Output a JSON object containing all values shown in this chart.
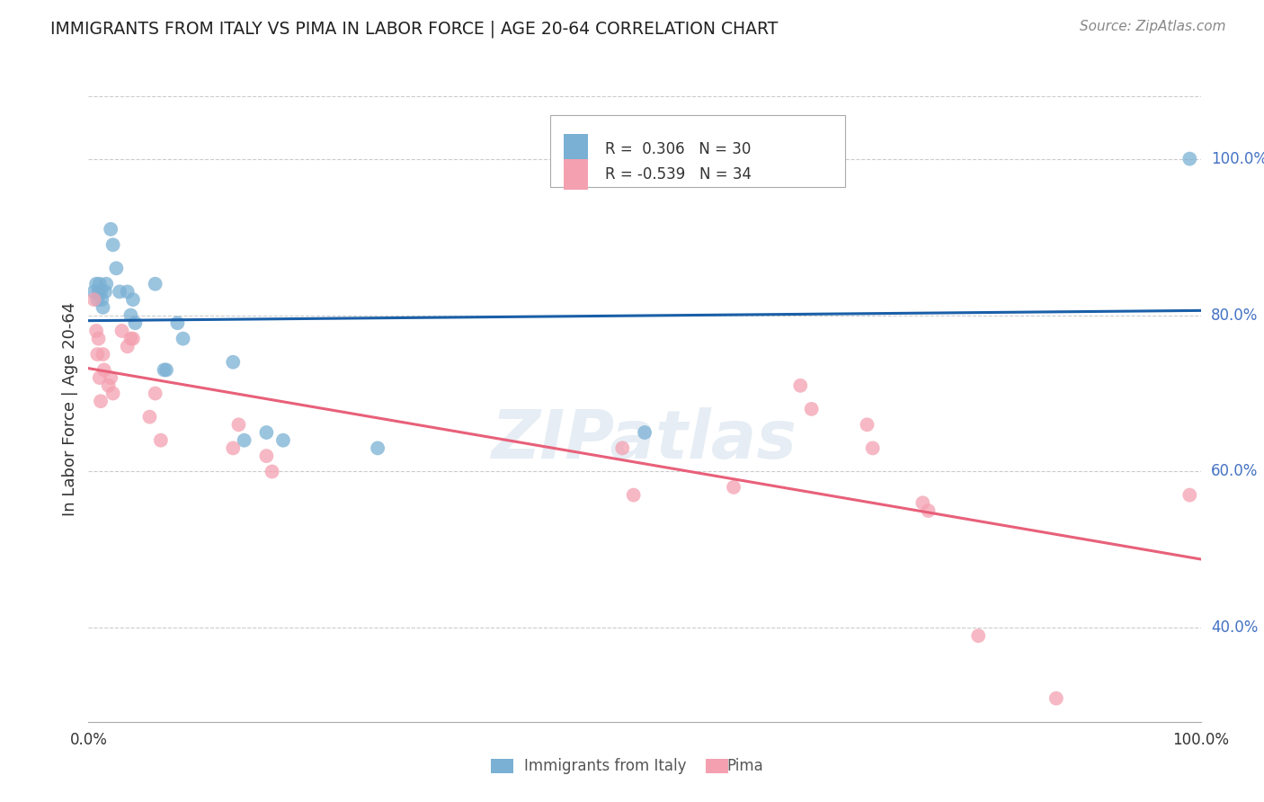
{
  "title": "IMMIGRANTS FROM ITALY VS PIMA IN LABOR FORCE | AGE 20-64 CORRELATION CHART",
  "source": "Source: ZipAtlas.com",
  "ylabel": "In Labor Force | Age 20-64",
  "xlim": [
    0,
    1.0
  ],
  "ylim": [
    0.28,
    1.08
  ],
  "yticks": [
    0.4,
    0.6,
    0.8,
    1.0
  ],
  "ytick_labels": [
    "40.0%",
    "60.0%",
    "80.0%",
    "100.0%"
  ],
  "blue_R": 0.306,
  "blue_N": 30,
  "pink_R": -0.539,
  "pink_N": 34,
  "blue_color": "#7ab0d4",
  "pink_color": "#f4a0b0",
  "blue_line_color": "#1a5fa8",
  "pink_line_color": "#e8607a",
  "blue_scatter": [
    [
      0.005,
      0.83
    ],
    [
      0.007,
      0.84
    ],
    [
      0.008,
      0.82
    ],
    [
      0.009,
      0.83
    ],
    [
      0.01,
      0.84
    ],
    [
      0.011,
      0.83
    ],
    [
      0.012,
      0.82
    ],
    [
      0.013,
      0.81
    ],
    [
      0.015,
      0.83
    ],
    [
      0.016,
      0.84
    ],
    [
      0.02,
      0.91
    ],
    [
      0.022,
      0.89
    ],
    [
      0.025,
      0.86
    ],
    [
      0.028,
      0.83
    ],
    [
      0.035,
      0.83
    ],
    [
      0.038,
      0.8
    ],
    [
      0.04,
      0.82
    ],
    [
      0.042,
      0.79
    ],
    [
      0.06,
      0.84
    ],
    [
      0.068,
      0.73
    ],
    [
      0.07,
      0.73
    ],
    [
      0.08,
      0.79
    ],
    [
      0.085,
      0.77
    ],
    [
      0.13,
      0.74
    ],
    [
      0.14,
      0.64
    ],
    [
      0.16,
      0.65
    ],
    [
      0.175,
      0.64
    ],
    [
      0.26,
      0.63
    ],
    [
      0.5,
      0.65
    ],
    [
      0.99,
      1.0
    ]
  ],
  "pink_scatter": [
    [
      0.005,
      0.82
    ],
    [
      0.007,
      0.78
    ],
    [
      0.008,
      0.75
    ],
    [
      0.009,
      0.77
    ],
    [
      0.01,
      0.72
    ],
    [
      0.011,
      0.69
    ],
    [
      0.013,
      0.75
    ],
    [
      0.014,
      0.73
    ],
    [
      0.018,
      0.71
    ],
    [
      0.02,
      0.72
    ],
    [
      0.022,
      0.7
    ],
    [
      0.03,
      0.78
    ],
    [
      0.035,
      0.76
    ],
    [
      0.038,
      0.77
    ],
    [
      0.04,
      0.77
    ],
    [
      0.055,
      0.67
    ],
    [
      0.06,
      0.7
    ],
    [
      0.065,
      0.64
    ],
    [
      0.13,
      0.63
    ],
    [
      0.135,
      0.66
    ],
    [
      0.16,
      0.62
    ],
    [
      0.165,
      0.6
    ],
    [
      0.48,
      0.63
    ],
    [
      0.49,
      0.57
    ],
    [
      0.58,
      0.58
    ],
    [
      0.64,
      0.71
    ],
    [
      0.65,
      0.68
    ],
    [
      0.7,
      0.66
    ],
    [
      0.705,
      0.63
    ],
    [
      0.75,
      0.56
    ],
    [
      0.755,
      0.55
    ],
    [
      0.8,
      0.39
    ],
    [
      0.87,
      0.31
    ],
    [
      0.99,
      0.57
    ]
  ],
  "background_color": "#ffffff",
  "grid_color": "#cccccc",
  "watermark": "ZIPatlas",
  "legend_label_blue": "Immigrants from Italy",
  "legend_label_pink": "Pima"
}
